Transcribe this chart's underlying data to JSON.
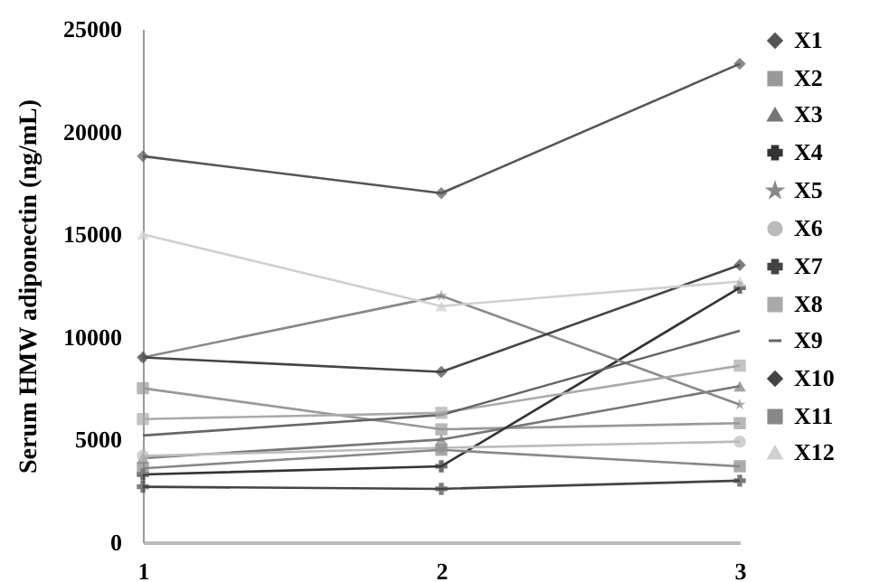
{
  "chart_data": {
    "type": "line",
    "ylabel": "Serum HMW adiponectin (ng/mL)",
    "x": [
      1,
      2,
      3
    ],
    "xlim": [
      1,
      3
    ],
    "xticks": [
      1,
      2,
      3
    ],
    "ylim": [
      0,
      25000
    ],
    "yticks": [
      0,
      5000,
      10000,
      15000,
      20000,
      25000
    ],
    "grid": false,
    "legend": "right",
    "series": [
      {
        "name": "X1",
        "color": "#555555",
        "marker": "diamond",
        "values": [
          18800,
          17000,
          23300
        ]
      },
      {
        "name": "X2",
        "color": "#999999",
        "marker": "square",
        "values": [
          7500,
          5500,
          5800
        ]
      },
      {
        "name": "X3",
        "color": "#777777",
        "marker": "triangle",
        "values": [
          4100,
          5000,
          7600
        ]
      },
      {
        "name": "X4",
        "color": "#333333",
        "marker": "cross",
        "values": [
          3300,
          3700,
          12400
        ]
      },
      {
        "name": "X5",
        "color": "#888888",
        "marker": "star",
        "values": [
          9000,
          12000,
          6700
        ]
      },
      {
        "name": "X6",
        "color": "#bbbbbb",
        "marker": "circle",
        "values": [
          4200,
          4600,
          4900
        ]
      },
      {
        "name": "X7",
        "color": "#444444",
        "marker": "cross",
        "values": [
          2700,
          2600,
          3000
        ]
      },
      {
        "name": "X8",
        "color": "#aaaaaa",
        "marker": "square",
        "values": [
          6000,
          6300,
          8600
        ]
      },
      {
        "name": "X9",
        "color": "#666666",
        "marker": "none",
        "values": [
          5200,
          6200,
          10300
        ]
      },
      {
        "name": "X10",
        "color": "#444444",
        "marker": "diamond",
        "values": [
          9000,
          8300,
          13500
        ]
      },
      {
        "name": "X11",
        "color": "#888888",
        "marker": "square",
        "values": [
          3600,
          4500,
          3700
        ]
      },
      {
        "name": "X12",
        "color": "#d0d0d0",
        "marker": "triangle",
        "values": [
          15000,
          11500,
          12700
        ]
      }
    ]
  }
}
